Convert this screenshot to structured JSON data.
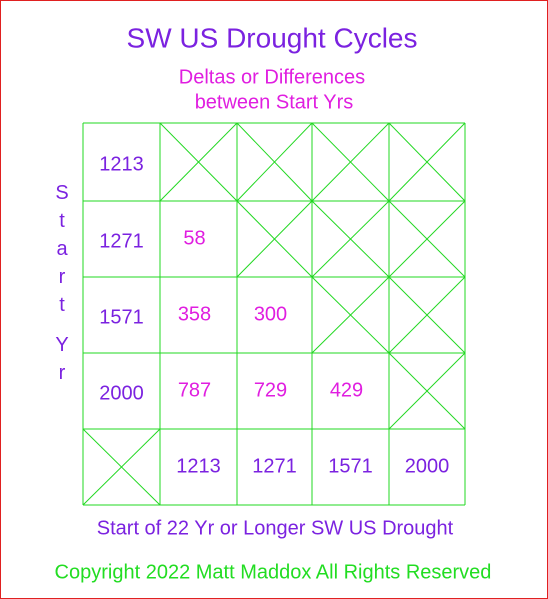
{
  "title": "SW US Drought Cycles",
  "subtitle": [
    "Deltas or Differences",
    "between Start Yrs"
  ],
  "row_axis_label": [
    "Start",
    "Yr"
  ],
  "rows": [
    {
      "label": 1213,
      "deltas": []
    },
    {
      "label": 1271,
      "deltas": [
        58
      ]
    },
    {
      "label": 1571,
      "deltas": [
        358,
        300
      ]
    },
    {
      "label": 2000,
      "deltas": [
        787,
        729,
        429
      ]
    }
  ],
  "column_labels": [
    1213,
    1271,
    1571,
    2000
  ],
  "column_axis_label": "Start of 22 Yr or Longer SW US Drought",
  "copyright": "Copyright 2022 Matt Maddox All Rights Reserved"
}
